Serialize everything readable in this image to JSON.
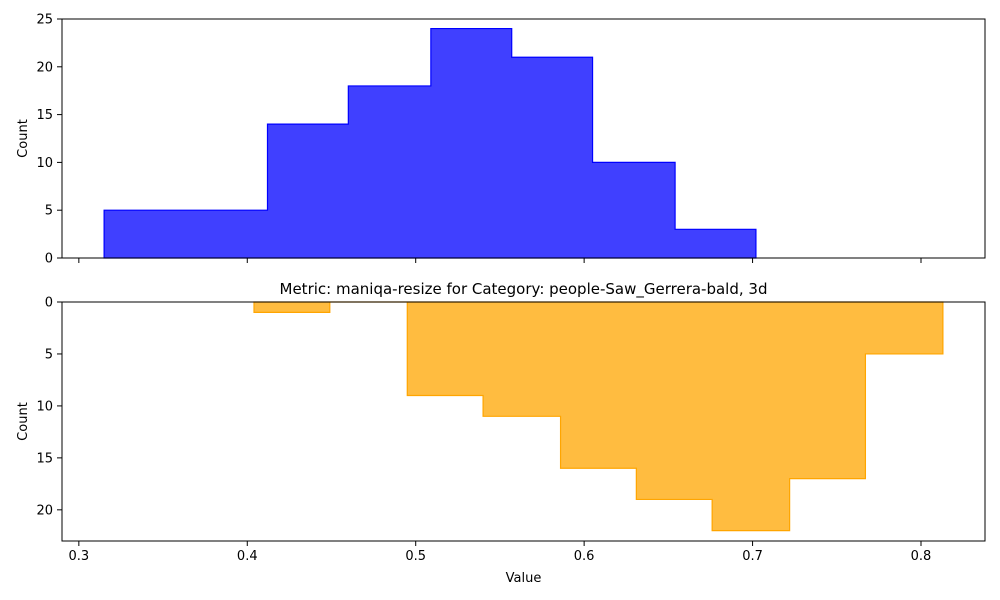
{
  "chart_data": [
    {
      "type": "bar",
      "histtype": "stepfilled",
      "title": "",
      "xlabel": "",
      "ylabel": "Count",
      "xlim": [
        0.29,
        0.838
      ],
      "ylim": [
        0,
        25
      ],
      "y_inverted": false,
      "color": "#0000ff",
      "fill_alpha": 0.75,
      "bin_edges": [
        0.315,
        0.412,
        0.46,
        0.509,
        0.557,
        0.605,
        0.654,
        0.702
      ],
      "counts": [
        5,
        14,
        18,
        24,
        21,
        10,
        3
      ],
      "xticks": [
        "0.3",
        "0.4",
        "0.5",
        "0.6",
        "0.7",
        "0.8"
      ],
      "xtick_labels_shown": false,
      "yticks": [
        "0",
        "5",
        "10",
        "15",
        "20",
        "25"
      ]
    },
    {
      "type": "bar",
      "histtype": "stepfilled",
      "title": "Metric: maniqa-resize for Category: people-Saw_Gerrera-bald, 3d",
      "xlabel": "Value",
      "ylabel": "Count",
      "xlim": [
        0.29,
        0.838
      ],
      "ylim": [
        0,
        23
      ],
      "y_inverted": true,
      "color": "#ffa500",
      "fill_alpha": 0.75,
      "bin_edges": [
        0.404,
        0.449,
        0.495,
        0.54,
        0.586,
        0.631,
        0.676,
        0.722,
        0.767,
        0.813
      ],
      "counts": [
        1,
        0,
        9,
        11,
        16,
        19,
        22,
        17,
        5
      ],
      "xticks": [
        "0.3",
        "0.4",
        "0.5",
        "0.6",
        "0.7",
        "0.8"
      ],
      "xtick_labels_shown": true,
      "yticks": [
        "0",
        "5",
        "10",
        "15",
        "20"
      ]
    }
  ]
}
